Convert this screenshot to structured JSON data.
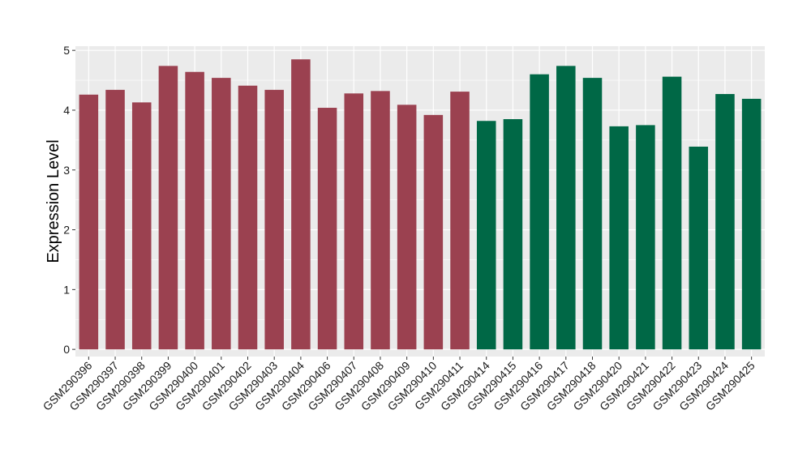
{
  "chart_data": {
    "type": "bar",
    "title": "",
    "xlabel": "",
    "ylabel": "Expression Level",
    "ylim": [
      -0.12,
      5.07
    ],
    "yticks": [
      0,
      1,
      2,
      3,
      4,
      5
    ],
    "grid": true,
    "panel_background": "#EBEBEB",
    "grid_color": "#FFFFFF",
    "categories": [
      "GSM290396",
      "GSM290397",
      "GSM290398",
      "GSM290399",
      "GSM290400",
      "GSM290401",
      "GSM290402",
      "GSM290403",
      "GSM290404",
      "GSM290406",
      "GSM290407",
      "GSM290408",
      "GSM290409",
      "GSM290410",
      "GSM290411",
      "GSM290414",
      "GSM290415",
      "GSM290416",
      "GSM290417",
      "GSM290418",
      "GSM290420",
      "GSM290421",
      "GSM290422",
      "GSM290423",
      "GSM290424",
      "GSM290425"
    ],
    "values": [
      4.26,
      4.34,
      4.13,
      4.74,
      4.64,
      4.54,
      4.41,
      4.34,
      4.85,
      4.04,
      4.28,
      4.32,
      4.09,
      3.92,
      4.31,
      3.82,
      3.85,
      4.6,
      4.74,
      4.54,
      3.73,
      3.75,
      4.56,
      3.39,
      4.27,
      4.19
    ],
    "bar_colors": [
      "#9B4150",
      "#9B4150",
      "#9B4150",
      "#9B4150",
      "#9B4150",
      "#9B4150",
      "#9B4150",
      "#9B4150",
      "#9B4150",
      "#9B4150",
      "#9B4150",
      "#9B4150",
      "#9B4150",
      "#9B4150",
      "#9B4150",
      "#006846",
      "#006846",
      "#006846",
      "#006846",
      "#006846",
      "#006846",
      "#006846",
      "#006846",
      "#006846",
      "#006846",
      "#006846"
    ]
  }
}
